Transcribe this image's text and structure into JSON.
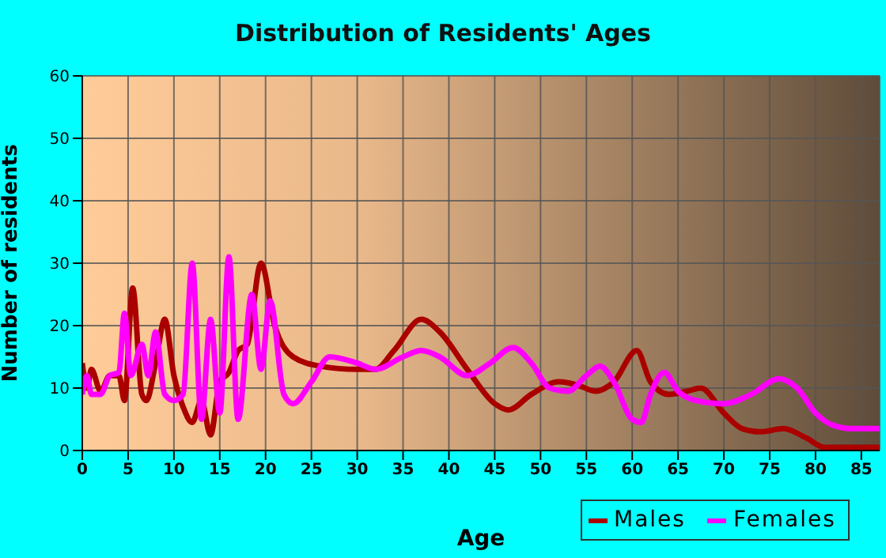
{
  "chart_data": {
    "type": "line",
    "title": "Distribution of Residents' Ages",
    "xlabel": "Age",
    "ylabel": "Number of residents",
    "xlim": [
      0,
      87
    ],
    "xticks": [
      0,
      5,
      10,
      15,
      20,
      25,
      30,
      35,
      40,
      45,
      50,
      55,
      60,
      65,
      70,
      75,
      80,
      85
    ],
    "ylim": [
      0,
      60
    ],
    "yticks": [
      0,
      10,
      20,
      30,
      40,
      50,
      60
    ],
    "grid": true,
    "legend": "bottom right",
    "marker": "none",
    "line_style": "solid",
    "series": [
      {
        "name": "Males",
        "color": "#aa0000",
        "x": [
          0,
          0.5,
          1,
          2,
          3,
          4,
          4.6,
          5.5,
          6.5,
          7,
          8,
          9,
          10,
          11,
          12,
          13,
          14,
          15,
          16,
          17,
          18,
          19.5,
          21,
          23,
          26,
          30,
          32,
          34,
          37,
          39,
          42,
          45,
          46.5,
          49,
          52,
          54,
          56,
          58,
          60.5,
          62,
          64,
          66,
          67.5,
          70,
          72,
          74,
          76.5,
          79,
          81,
          84,
          87
        ],
        "values": [
          14,
          10,
          13,
          9.5,
          12,
          12,
          8,
          26,
          9,
          8,
          14,
          21,
          12,
          7,
          4.5,
          8,
          2.5,
          11,
          12.5,
          16,
          17,
          30,
          20,
          15,
          13.5,
          13,
          13,
          16,
          21,
          19,
          13,
          7.5,
          6.5,
          9,
          11,
          10.5,
          9.5,
          11,
          16,
          11,
          9,
          9.5,
          10,
          6,
          3.5,
          3,
          3.5,
          2,
          0.5,
          0.5,
          0.5
        ]
      },
      {
        "name": "Females",
        "color": "#ff00ff",
        "x": [
          0,
          0.5,
          1,
          2,
          3,
          4,
          4.6,
          5.3,
          6.5,
          7.2,
          8,
          9,
          10,
          11,
          12,
          13,
          14,
          15,
          16,
          17,
          18.5,
          19.5,
          20.5,
          22,
          23,
          25,
          27,
          30,
          32,
          35,
          37,
          39,
          42,
          44.5,
          47,
          49,
          51,
          53,
          55,
          56.5,
          58,
          60,
          61,
          62,
          63.5,
          65,
          67,
          70,
          73,
          76,
          78,
          80,
          82,
          84,
          87
        ],
        "values": [
          9,
          12,
          9,
          9,
          12,
          12.5,
          22,
          12,
          17,
          12,
          19,
          9,
          8,
          9,
          30,
          5,
          21,
          6,
          31,
          5,
          25,
          13,
          24,
          9,
          7.5,
          11,
          15,
          14,
          13,
          15,
          16,
          15,
          12,
          14,
          16.5,
          14,
          10,
          9.5,
          12,
          13.5,
          11,
          5,
          4.5,
          9,
          12.5,
          9.5,
          8,
          7.5,
          9,
          11.5,
          10,
          6,
          4,
          3.5,
          3.5
        ]
      }
    ]
  }
}
